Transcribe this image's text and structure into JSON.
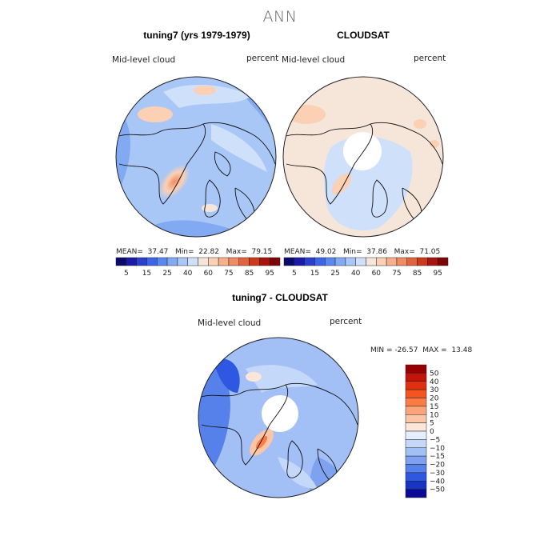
{
  "page": {
    "title": "ANN"
  },
  "panels": {
    "model": {
      "title": "tuning7 (yrs 1979-1979)",
      "variable": "Mid-level cloud",
      "units": "percent",
      "mean_label": "MEAN=",
      "mean": "37.47",
      "min_label": "Min=",
      "min": "22.82",
      "max_label": "Max=",
      "max": "79.15"
    },
    "obs": {
      "title": "CLOUDSAT",
      "variable": "Mid-level cloud",
      "units": "percent",
      "mean_label": "MEAN=",
      "mean": "49.02",
      "min_label": "Min=",
      "min": "37.86",
      "max_label": "Max=",
      "max": "71.05"
    },
    "diff": {
      "title": "tuning7 - CLOUDSAT",
      "variable": "Mid-level cloud",
      "units": "percent",
      "min_label": "MIN =",
      "min": "-26.57",
      "max_label": "MAX =",
      "max": "13.48"
    }
  },
  "chart_data": [
    {
      "type": "heatmap",
      "projection": "north-polar-stereographic",
      "title": "tuning7 (yrs 1979-1979)",
      "field": "Mid-level cloud",
      "units": "percent",
      "stats": {
        "mean": 37.47,
        "min": 22.82,
        "max": 79.15
      },
      "colorbar": {
        "orientation": "horizontal",
        "levels": [
          5,
          10,
          15,
          20,
          25,
          30,
          40,
          50,
          60,
          70,
          75,
          80,
          85,
          90,
          95
        ],
        "tick_labels": [
          "5",
          "15",
          "25",
          "40",
          "60",
          "75",
          "85",
          "95"
        ],
        "colors": [
          "#0a0a6e",
          "#1a1aa8",
          "#2a3fd0",
          "#3c64e6",
          "#5a88ee",
          "#82aaf2",
          "#a8c6f6",
          "#cfe0fb",
          "#f6e6da",
          "#fbd0b4",
          "#f8b08a",
          "#f08c63",
          "#e4623d",
          "#cc3a1c",
          "#a8140c",
          "#7c0404"
        ]
      }
    },
    {
      "type": "heatmap",
      "projection": "north-polar-stereographic",
      "title": "CLOUDSAT",
      "field": "Mid-level cloud",
      "units": "percent",
      "stats": {
        "mean": 49.02,
        "min": 37.86,
        "max": 71.05
      },
      "colorbar": {
        "orientation": "horizontal",
        "levels": [
          5,
          10,
          15,
          20,
          25,
          30,
          40,
          50,
          60,
          70,
          75,
          80,
          85,
          90,
          95
        ],
        "tick_labels": [
          "5",
          "15",
          "25",
          "40",
          "60",
          "75",
          "85",
          "95"
        ],
        "colors": [
          "#0a0a6e",
          "#1a1aa8",
          "#2a3fd0",
          "#3c64e6",
          "#5a88ee",
          "#82aaf2",
          "#a8c6f6",
          "#cfe0fb",
          "#f6e6da",
          "#fbd0b4",
          "#f8b08a",
          "#f08c63",
          "#e4623d",
          "#cc3a1c",
          "#a8140c",
          "#7c0404"
        ]
      }
    },
    {
      "type": "heatmap",
      "projection": "north-polar-stereographic",
      "title": "tuning7 - CLOUDSAT",
      "field": "Mid-level cloud",
      "units": "percent",
      "stats": {
        "min": -26.57,
        "max": 13.48
      },
      "colorbar": {
        "orientation": "vertical",
        "levels": [
          50,
          40,
          30,
          20,
          15,
          10,
          5,
          0,
          -5,
          -10,
          -15,
          -20,
          -30,
          -40,
          -50
        ],
        "tick_labels": [
          "50",
          "40",
          "30",
          "20",
          "15",
          "10",
          "5",
          "0",
          "−5",
          "−10",
          "−15",
          "−20",
          "−30",
          "−40",
          "−50"
        ],
        "colors": [
          "#960000",
          "#c21408",
          "#e0300e",
          "#f45420",
          "#fb7c44",
          "#fca47a",
          "#fcc6a6",
          "#fce6da",
          "#e4eefc",
          "#c4d8fa",
          "#a2bff6",
          "#7ea2f0",
          "#5680ea",
          "#2f58e2",
          "#1834c4",
          "#0a0a96"
        ]
      }
    }
  ]
}
